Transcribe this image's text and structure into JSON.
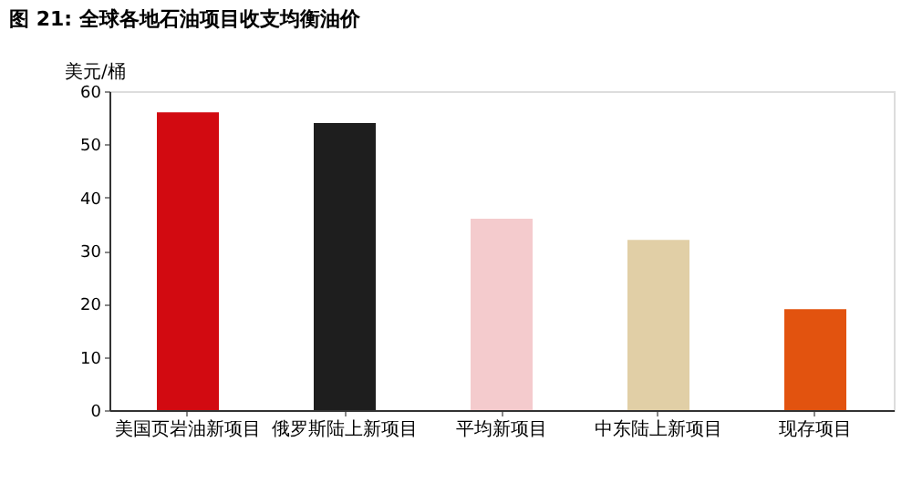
{
  "chart_data": {
    "type": "bar",
    "title": "图 21:    全球各地石油项目收支均衡油价",
    "ylabel": "美元/桶",
    "categories": [
      "美国页岩油新项目",
      "俄罗斯陆上新项目",
      "平均新项目",
      "中东陆上新项目",
      "现存项目"
    ],
    "values": [
      56,
      54,
      36,
      32,
      19
    ],
    "colors": [
      "#d20a11",
      "#1e1e1e",
      "#f4cbcd",
      "#e1cfa6",
      "#e2530f"
    ],
    "ylim": [
      0,
      60
    ],
    "yticks": [
      0,
      10,
      20,
      30,
      40,
      50,
      60
    ],
    "grid": false
  }
}
